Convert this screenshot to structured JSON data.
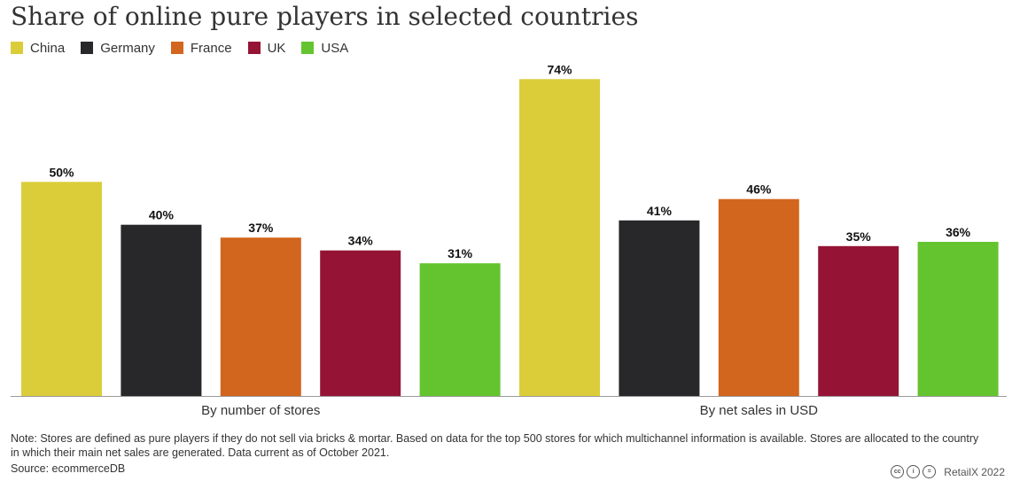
{
  "title": "Share of online pure players in selected countries",
  "legend": [
    {
      "name": "China",
      "color": "#dbcd3a"
    },
    {
      "name": "Germany",
      "color": "#28282a"
    },
    {
      "name": "France",
      "color": "#d2661e"
    },
    {
      "name": "UK",
      "color": "#951435"
    },
    {
      "name": "USA",
      "color": "#64c42f"
    }
  ],
  "chart_data": {
    "type": "bar",
    "categories": [
      "By number of stores",
      "By net sales in USD"
    ],
    "series": [
      {
        "name": "China",
        "color": "#dbcd3a",
        "values": [
          50,
          74
        ],
        "labels": [
          "50%",
          "74%"
        ]
      },
      {
        "name": "Germany",
        "color": "#28282a",
        "values": [
          40,
          41
        ],
        "labels": [
          "40%",
          "41%"
        ]
      },
      {
        "name": "France",
        "color": "#d2661e",
        "values": [
          37,
          46
        ],
        "labels": [
          "37%",
          "46%"
        ]
      },
      {
        "name": "UK",
        "color": "#951435",
        "values": [
          34,
          35
        ],
        "labels": [
          "34%",
          "35%"
        ]
      },
      {
        "name": "USA",
        "color": "#64c42f",
        "values": [
          31,
          36
        ],
        "labels": [
          "31%",
          "36%"
        ]
      }
    ],
    "ylim": [
      0,
      78
    ],
    "grid": false,
    "legend_position": "top-left"
  },
  "footer": {
    "note": "Note: Stores are defined as pure players if they do not sell via bricks & mortar. Based on data for the top 500 stores for which multichannel information is available. Stores are allocated to the country in which their main net sales are generated. Data current as of October 2021.",
    "source": "Source: ecommerceDB",
    "credit": "RetailX 2022",
    "credit_icons": [
      "cc-icon",
      "by-icon",
      "nd-icon"
    ]
  }
}
